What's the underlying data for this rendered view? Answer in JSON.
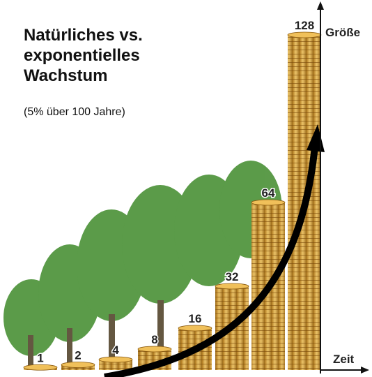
{
  "chart_data": {
    "type": "bar",
    "title": "Natürliches vs. exponentielles Wachstum",
    "subtitle": "(5% über 100 Jahre)",
    "y_label": "Größe",
    "x_label": "Zeit",
    "values": [
      1,
      2,
      4,
      8,
      16,
      32,
      64,
      128
    ],
    "color": "#d99a2b"
  }
}
